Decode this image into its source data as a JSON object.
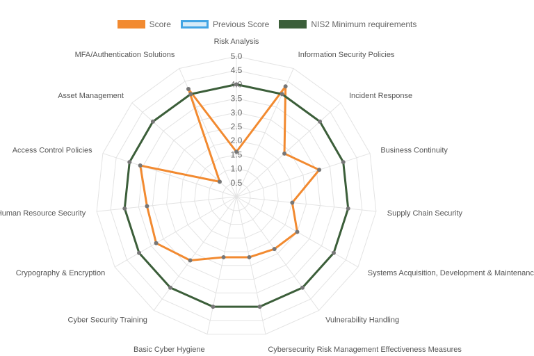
{
  "chart_data": {
    "type": "radar",
    "title": "",
    "axes": [
      "Risk Analysis",
      "Information Security Policies",
      "Incident Response",
      "Business Continuity",
      "Supply Chain Security",
      "Systems Acquisition, Development & Maintenance",
      "Vulnerability Handling",
      "Cybersecurity Risk Management Effectiveness Measures",
      "Basic Cyber Hygiene",
      "Cyber Security Training",
      "Crypography & Encryption",
      "Human Resource Security",
      "Access Control Policies",
      "Asset Management",
      "MFA/Authentication Solutions"
    ],
    "scale": {
      "min": 0,
      "max": 5,
      "ticks": [
        "0.5",
        "1.0",
        "1.5",
        "2.0",
        "2.5",
        "3.0",
        "3.5",
        "4.0",
        "4.5",
        "5.0"
      ]
    },
    "legend_position": "top",
    "series": [
      {
        "name": "Score",
        "values": [
          1.6,
          4.3,
          2.3,
          3.1,
          2.0,
          2.5,
          2.3,
          2.2,
          2.2,
          2.8,
          3.3,
          3.2,
          3.6,
          0.8,
          4.2
        ],
        "color": "#f28a30",
        "fill": "none"
      },
      {
        "name": "Previous Score",
        "values": [],
        "color": "#43a5e4",
        "fill": "#d6ebf8"
      },
      {
        "name": "NIS2 Minimum requirements",
        "values": [
          4.0,
          4.0,
          4.0,
          4.0,
          4.0,
          4.0,
          4.0,
          4.0,
          4.0,
          4.0,
          4.0,
          4.0,
          4.0,
          4.0,
          4.0
        ],
        "color": "#3b5e39",
        "fill": "none"
      }
    ]
  }
}
